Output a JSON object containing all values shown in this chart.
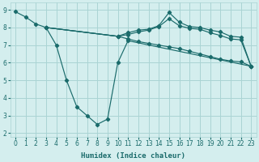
{
  "background_color": "#d4eeee",
  "grid_color": "#aad4d4",
  "line_color": "#1a6b6b",
  "xlabel": "Humidex (Indice chaleur)",
  "xlim": [
    -0.5,
    23.5
  ],
  "ylim": [
    1.8,
    9.4
  ],
  "yticks": [
    2,
    3,
    4,
    5,
    6,
    7,
    8,
    9
  ],
  "xticks": [
    0,
    1,
    2,
    3,
    4,
    5,
    6,
    7,
    8,
    9,
    10,
    11,
    12,
    13,
    14,
    15,
    16,
    17,
    18,
    19,
    20,
    21,
    22,
    23
  ],
  "curves": [
    {
      "x": [
        0,
        1,
        2,
        3,
        4,
        5,
        6,
        7,
        8,
        9,
        10,
        11,
        23
      ],
      "y": [
        8.9,
        8.6,
        8.2,
        8.0,
        7.0,
        5.0,
        3.5,
        3.0,
        2.5,
        2.8,
        6.0,
        7.25,
        5.8
      ]
    },
    {
      "x": [
        3,
        10,
        11,
        12,
        13,
        14,
        15,
        16,
        17,
        18,
        19,
        20,
        21,
        22,
        23
      ],
      "y": [
        8.0,
        7.5,
        7.35,
        7.2,
        7.1,
        7.0,
        6.9,
        6.8,
        6.65,
        6.5,
        6.35,
        6.2,
        6.1,
        6.05,
        5.8
      ]
    },
    {
      "x": [
        3,
        10,
        11,
        12,
        13,
        14,
        15,
        16,
        17,
        18,
        19,
        20,
        21,
        22,
        23
      ],
      "y": [
        8.0,
        7.5,
        7.7,
        7.85,
        7.9,
        8.1,
        8.85,
        8.3,
        8.05,
        8.0,
        7.85,
        7.75,
        7.5,
        7.45,
        5.8
      ]
    },
    {
      "x": [
        3,
        10,
        11,
        12,
        13,
        14,
        15,
        16,
        17,
        18,
        19,
        20,
        21,
        22,
        23
      ],
      "y": [
        8.0,
        7.5,
        7.6,
        7.75,
        7.85,
        8.05,
        8.5,
        8.1,
        7.95,
        7.9,
        7.7,
        7.55,
        7.35,
        7.3,
        5.8
      ]
    }
  ]
}
